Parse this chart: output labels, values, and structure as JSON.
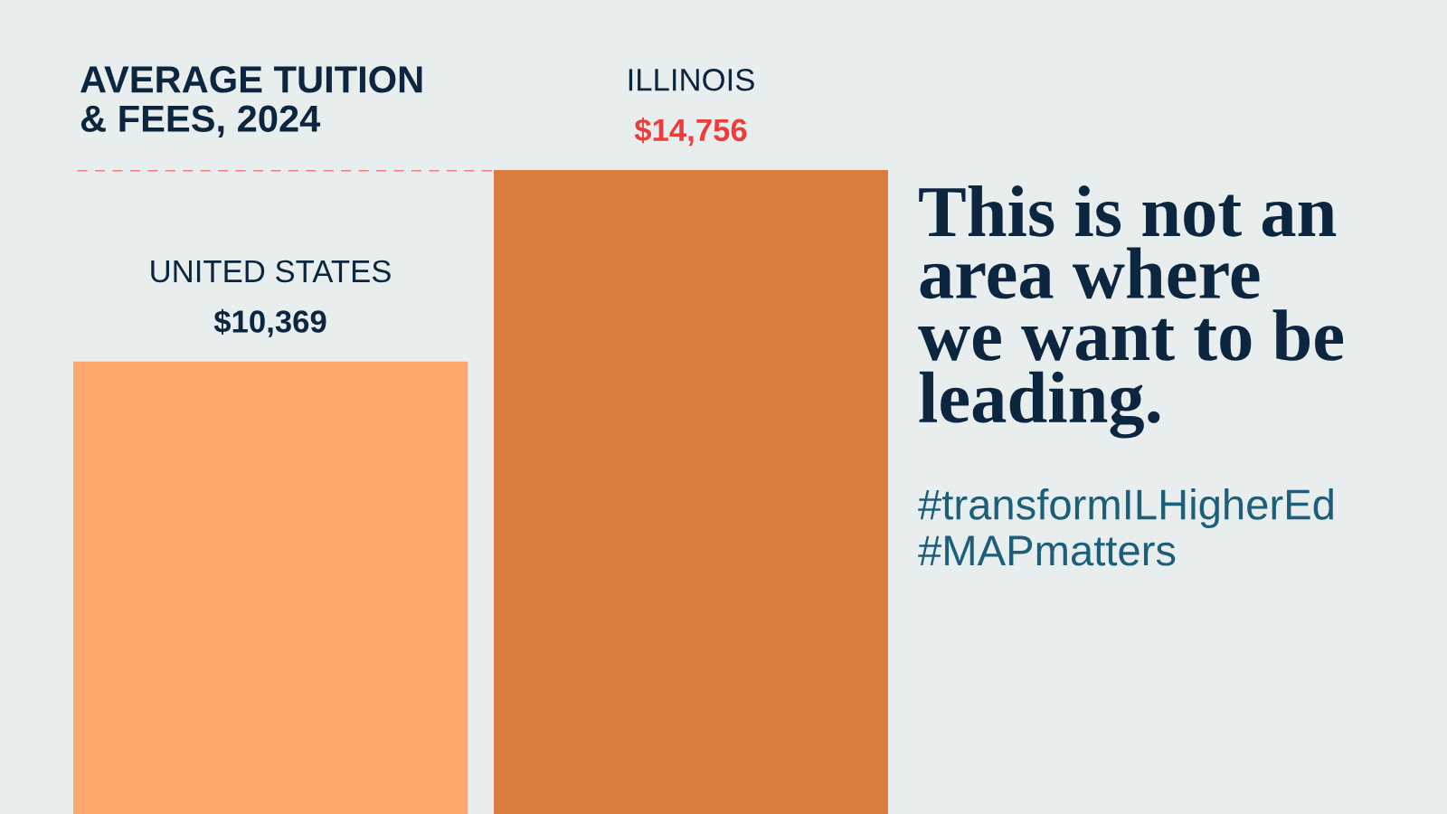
{
  "chart_data": {
    "type": "bar",
    "title": "AVERAGE TUITION\n& FEES, 2024",
    "categories": [
      "UNITED STATES",
      "ILLINOIS"
    ],
    "values": [
      10369,
      14756
    ],
    "colors": [
      "#ffa96e",
      "#d97c3f"
    ],
    "value_labels": [
      "$10,369",
      "$14,756"
    ],
    "ref_lines": [
      {
        "axis": "y",
        "value": 14756,
        "label": null,
        "color": "#f07c7c",
        "line_style": "dashed"
      }
    ],
    "annotations": [
      "This is not an\narea where\nwe want to be\nleading.",
      "#transformILHigherEd\n#MAPmatters"
    ],
    "legend": false
  }
}
